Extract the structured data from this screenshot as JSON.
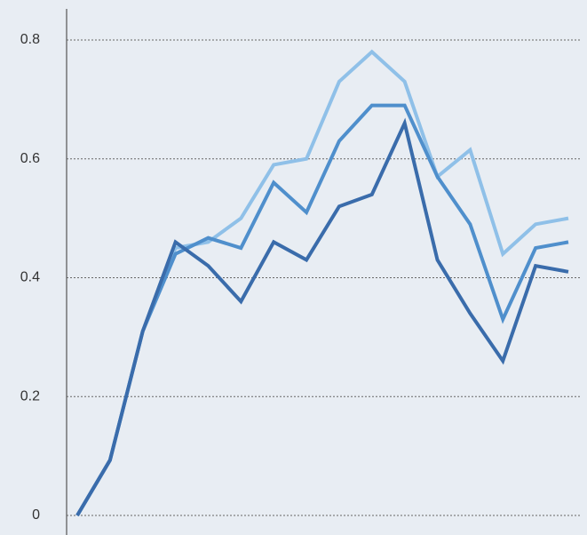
{
  "chart_data": {
    "type": "line",
    "categories": [
      null,
      null,
      null,
      null,
      null,
      null,
      null,
      null,
      null,
      null,
      null,
      null,
      null,
      null,
      null,
      null
    ],
    "series": [
      {
        "color": "#8fc0e8",
        "values": [
          0,
          0.093,
          0.31,
          0.45,
          0.46,
          0.5,
          0.59,
          0.6,
          0.73,
          0.78,
          0.73,
          0.57,
          0.615,
          0.44,
          0.49,
          0.5
        ]
      },
      {
        "color": "#4f8fcc",
        "values": [
          0,
          0.093,
          0.31,
          0.44,
          0.467,
          0.45,
          0.56,
          0.51,
          0.63,
          0.69,
          0.69,
          0.57,
          0.49,
          0.33,
          0.45,
          0.46
        ]
      },
      {
        "color": "#3a6cab",
        "values": [
          0,
          0.093,
          0.31,
          0.46,
          0.42,
          0.36,
          0.46,
          0.43,
          0.52,
          0.54,
          0.66,
          0.43,
          0.34,
          0.26,
          0.42,
          0.41
        ]
      }
    ],
    "ylim": [
      0,
      0.8
    ],
    "yticks": [
      0,
      0.2,
      0.4,
      0.6,
      0.8
    ],
    "grid": true
  }
}
